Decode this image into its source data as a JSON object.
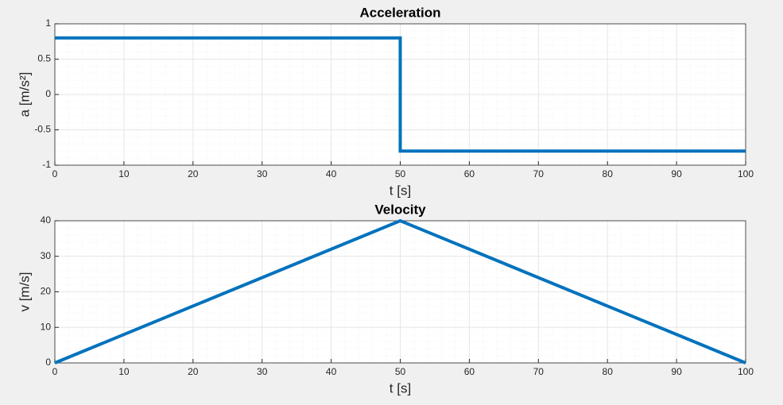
{
  "chart_data": [
    {
      "type": "line",
      "title": "Acceleration",
      "x_label": "t [s]",
      "y_label": "a [m/s²]",
      "x": [
        0,
        50,
        50,
        100
      ],
      "values": [
        0.8,
        0.8,
        -0.8,
        -0.8
      ],
      "color": "#0072bd",
      "xlim": [
        0,
        100
      ],
      "ylim": [
        -1,
        1
      ],
      "xticks": [
        0,
        10,
        20,
        30,
        40,
        50,
        60,
        70,
        80,
        90,
        100
      ],
      "yticks": [
        -1,
        -0.5,
        0,
        0.5,
        1
      ],
      "grid": true,
      "minor_grid": true
    },
    {
      "type": "line",
      "title": "Velocity",
      "x_label": "t [s]",
      "y_label": "v [m/s]",
      "x": [
        0,
        50,
        100
      ],
      "values": [
        0,
        40,
        0
      ],
      "color": "#0072bd",
      "xlim": [
        0,
        100
      ],
      "ylim": [
        0,
        40
      ],
      "xticks": [
        0,
        10,
        20,
        30,
        40,
        50,
        60,
        70,
        80,
        90,
        100
      ],
      "yticks": [
        0,
        10,
        20,
        30,
        40
      ],
      "grid": true,
      "minor_grid": true
    }
  ]
}
